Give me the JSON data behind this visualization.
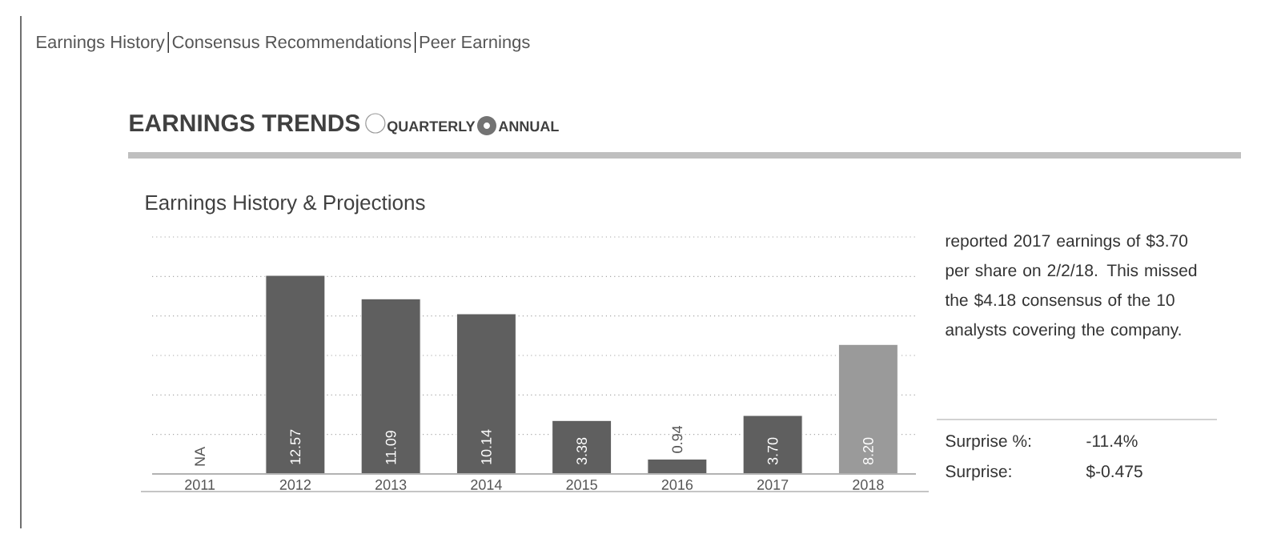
{
  "chart_data": {
    "type": "bar",
    "title": "Earnings History & Projections",
    "categories": [
      "2011",
      "2012",
      "2013",
      "2014",
      "2015",
      "2016",
      "2017",
      "2018"
    ],
    "values": [
      null,
      12.57,
      11.09,
      10.14,
      3.38,
      0.94,
      3.7,
      8.2
    ],
    "value_labels": [
      "NA",
      "12.57",
      "11.09",
      "10.14",
      "3.38",
      "0.94",
      "3.70",
      "8.20"
    ],
    "colors": [
      "#5f5f5f",
      "#5f5f5f",
      "#5f5f5f",
      "#5f5f5f",
      "#5f5f5f",
      "#5f5f5f",
      "#5f5f5f",
      "#9a9a9a"
    ],
    "ylim": [
      0,
      15
    ],
    "yticks": [
      {
        "value": 2.5,
        "label": null
      },
      {
        "value": 5,
        "label": null
      },
      {
        "value": 7.5,
        "label": null
      },
      {
        "value": 10,
        "label": null
      },
      {
        "value": 12.5,
        "label": null
      },
      {
        "value": 15,
        "label": null
      }
    ],
    "tick_labels": "x",
    "grid": "y",
    "annotations": [
      "Earnings History",
      "Consensus Recommendations",
      "Peer Earnings",
      "EARNINGS TRENDS",
      "QUARTERLY",
      "ANNUAL",
      "reported 2017 earnings of $3.70 per share on 2/2/18. This missed the $4.18 consensus of the 10 analysts covering the company.",
      "Surprise %:",
      "-11.4%",
      "Surprise:",
      "$-0.475"
    ]
  }
}
